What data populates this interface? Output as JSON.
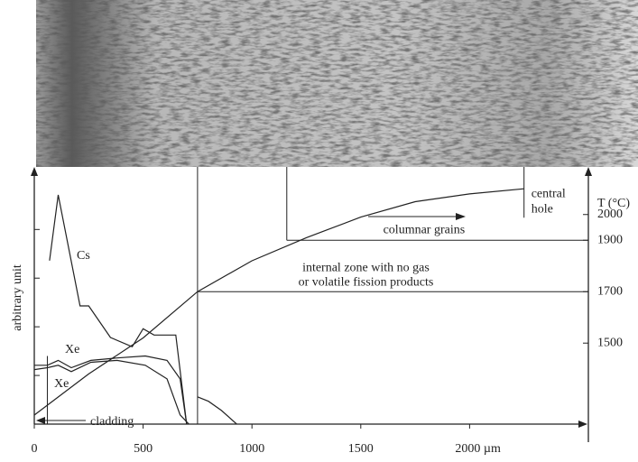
{
  "chart_data": {
    "type": "line",
    "x_unit_label": "µm",
    "y_label": "arbitrary unit",
    "y2_label": "T (°C)",
    "xlim": [
      0,
      2500
    ],
    "xticks": [
      0,
      500,
      1000,
      1500,
      {
        "value": 2000,
        "label": "2000 µm"
      }
    ],
    "ylim": [
      0,
      5.1
    ],
    "yticks": [
      1,
      2,
      3,
      4
    ],
    "y2lim": [
      1185,
      2150
    ],
    "y2ticks": [
      1500,
      1700,
      1900,
      2000
    ],
    "series": [
      {
        "name": "Cs",
        "color": "#222",
        "x": [
          70,
          110,
          210,
          250,
          350,
          450,
          500,
          550,
          650,
          700,
          720,
          750,
          800,
          860,
          930
        ],
        "values": [
          3.36,
          4.71,
          2.43,
          2.43,
          1.78,
          1.59,
          1.96,
          1.83,
          1.83,
          0,
          null,
          0.56,
          0.47,
          0.28,
          0
        ]
      },
      {
        "name": "Xe",
        "color": "#222",
        "x": [
          0,
          60,
          110,
          170,
          260,
          380,
          510,
          610,
          670,
          700
        ],
        "values": [
          1.21,
          1.21,
          1.31,
          1.16,
          1.31,
          1.36,
          1.4,
          1.31,
          0.93,
          0
        ]
      },
      {
        "name": "Xe",
        "color": "#222",
        "x": [
          0,
          60,
          110,
          170,
          260,
          380,
          510,
          610,
          670,
          710
        ],
        "values": [
          1.12,
          1.16,
          1.21,
          1.08,
          1.27,
          1.31,
          1.21,
          0.93,
          0.19,
          0
        ]
      },
      {
        "axis": "y2",
        "color": "#222",
        "x": [
          0,
          250,
          500,
          750,
          1000,
          1250,
          1500,
          1750,
          2000,
          2250
        ],
        "values": [
          1220,
          1380,
          1520,
          1700,
          1820,
          1910,
          1990,
          2050,
          2080,
          2100
        ]
      }
    ],
    "zones": [
      {
        "x": 750,
        "T": 1700,
        "label": [
          "internal zone with no gas",
          "or volatile fission products"
        ]
      },
      {
        "x": 1160,
        "T": 1900,
        "label": [
          "columnar grains"
        ]
      },
      {
        "x": 2250,
        "label": [
          "central",
          "hole"
        ]
      }
    ],
    "cladding": {
      "x": 60,
      "label": "cladding"
    }
  }
}
